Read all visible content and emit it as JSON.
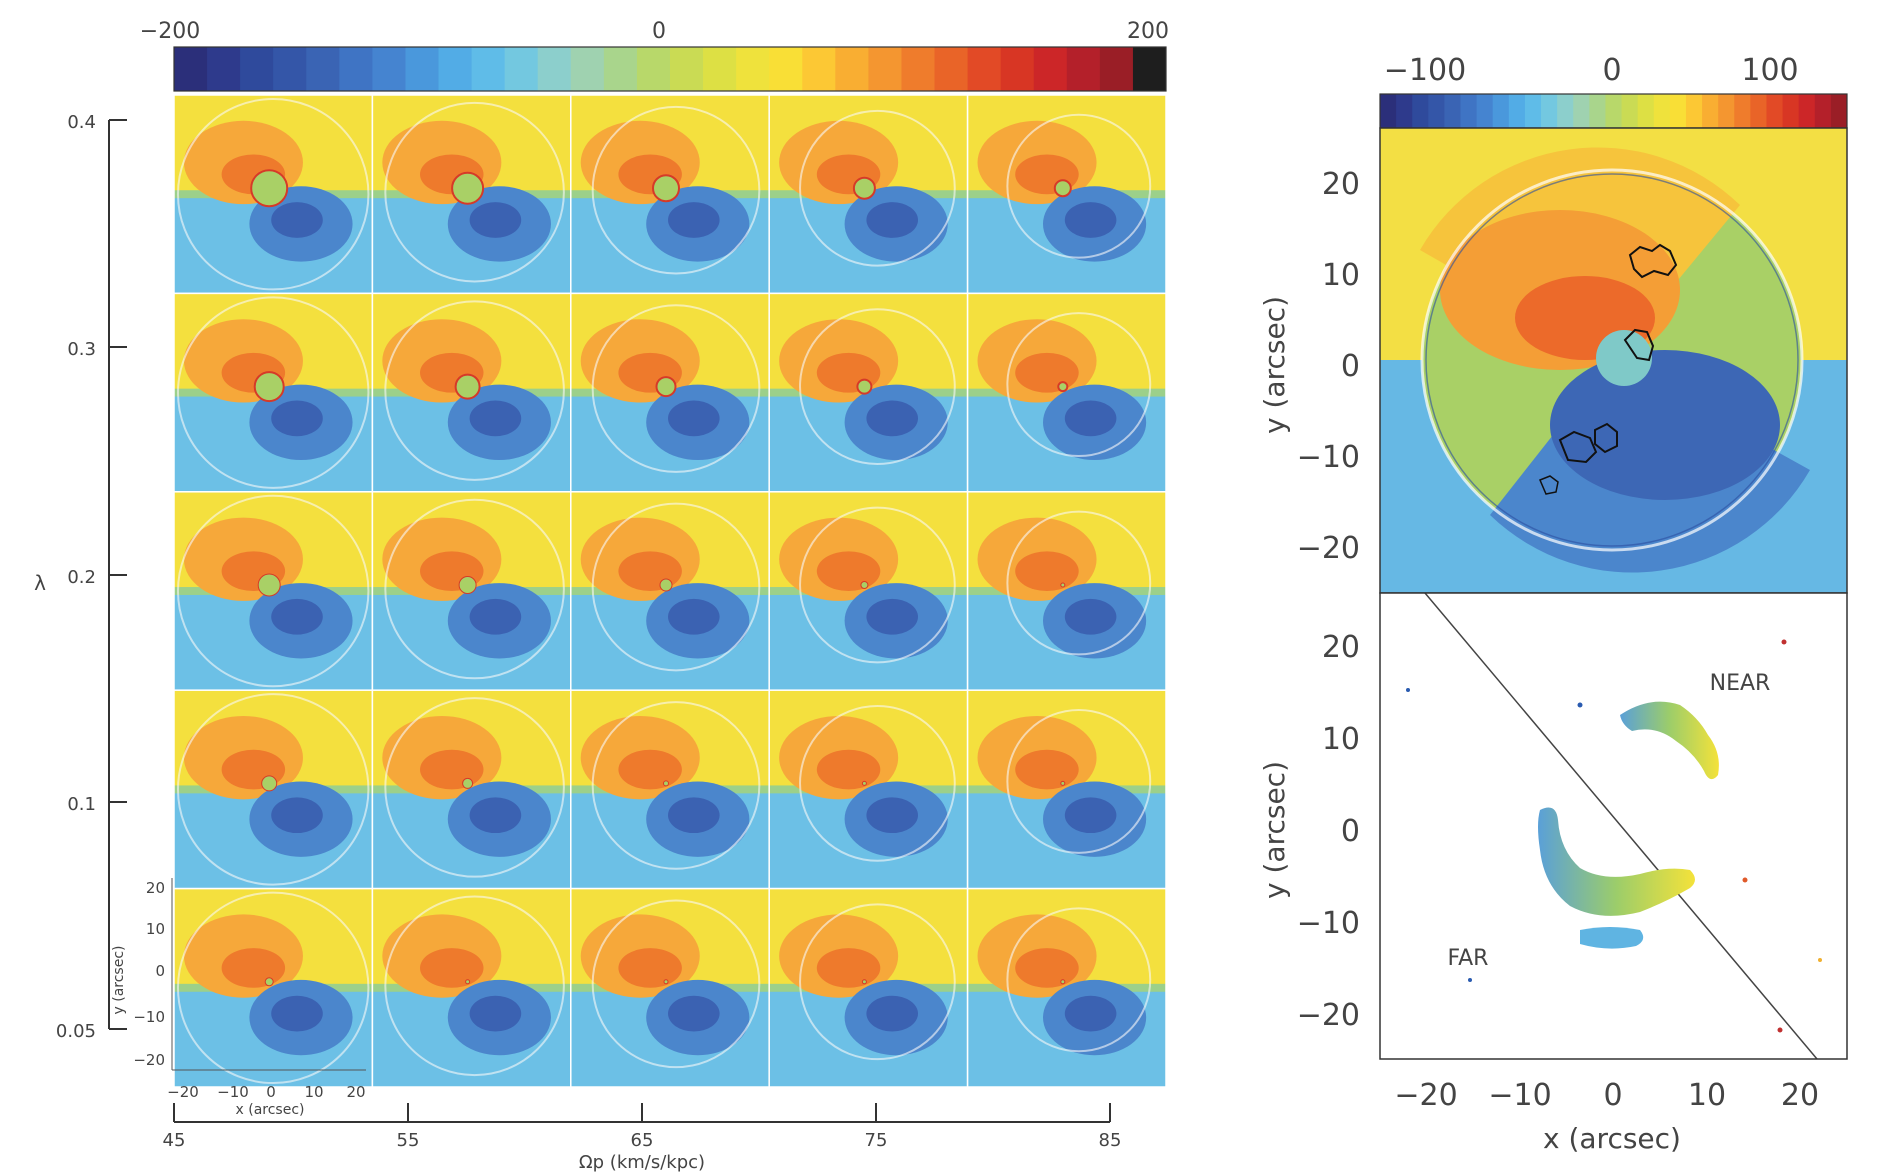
{
  "left_figure": {
    "colorbar": {
      "tick_labels": [
        "−200",
        "0",
        "200"
      ],
      "vmin": -200,
      "vmax": 200
    },
    "y_axis": {
      "label": "λ",
      "tick_labels": [
        "0.4",
        "0.3",
        "0.2",
        "0.1",
        "0.05"
      ]
    },
    "x_axis": {
      "label": "Ωp (km/s/kpc)",
      "tick_labels": [
        "45",
        "55",
        "65",
        "75",
        "85"
      ]
    },
    "inset_axes": {
      "xlabel": "x (arcsec)",
      "ylabel": "y (arcsec)",
      "x_tick_labels": [
        "−20",
        "−10",
        "0",
        "10",
        "20"
      ],
      "y_tick_labels": [
        "20",
        "10",
        "0",
        "−10",
        "−20"
      ]
    }
  },
  "right_figure": {
    "colorbar": {
      "tick_labels": [
        "−100",
        "0",
        "100"
      ],
      "vmin": -130,
      "vmax": 130
    },
    "top_panel": {
      "ylabel": "y (arcsec)",
      "y_tick_labels": [
        "20",
        "10",
        "0",
        "−10",
        "−20"
      ]
    },
    "bottom_panel": {
      "ylabel": "y (arcsec)",
      "y_tick_labels": [
        "20",
        "10",
        "0",
        "−10",
        "−20"
      ],
      "xlabel": "x (arcsec)",
      "x_tick_labels": [
        "−20",
        "−10",
        "0",
        "10",
        "20"
      ],
      "annotations": {
        "near": "NEAR",
        "far": "FAR"
      }
    }
  },
  "chart_data": [
    {
      "type": "heatmap",
      "description_rows": "lambda",
      "rows": [
        0.4,
        0.3,
        0.2,
        0.1,
        0.05
      ],
      "cols": [
        45,
        55,
        65,
        75,
        85
      ],
      "xlabel": "Ωp (km/s/kpc)",
      "ylabel": "λ",
      "colorbar_range": [
        -200,
        200
      ]
    },
    {
      "type": "heatmap",
      "xlabel": "x (arcsec)",
      "ylabel": "y (arcsec)",
      "xlim": [
        -25,
        25
      ],
      "ylim": [
        -25,
        25
      ],
      "colorbar_range": [
        -130,
        130
      ]
    },
    {
      "type": "scatter",
      "xlabel": "x (arcsec)",
      "ylabel": "y (arcsec)",
      "xlim": [
        -25,
        25
      ],
      "ylim": [
        -25,
        25
      ],
      "annotations": [
        "NEAR",
        "FAR"
      ]
    }
  ]
}
